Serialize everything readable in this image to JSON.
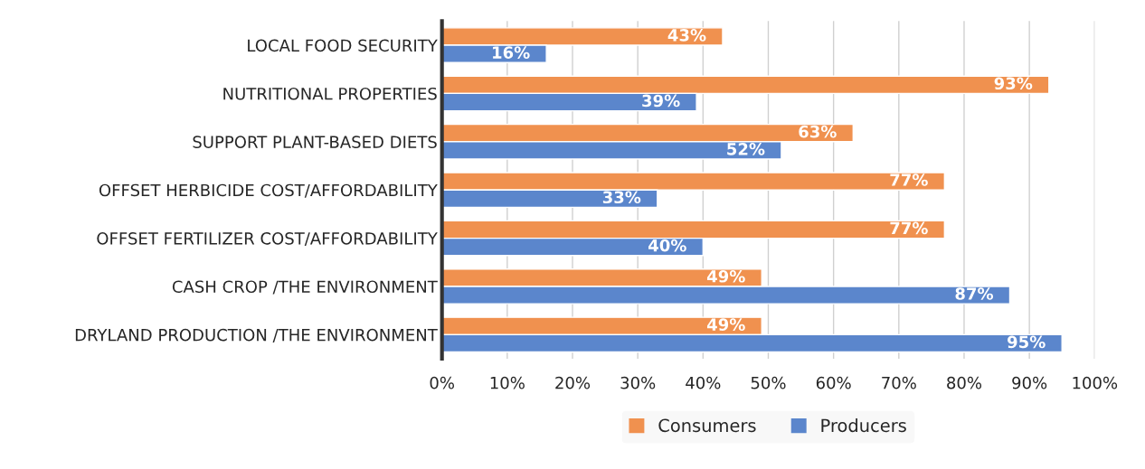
{
  "chart_data": {
    "type": "bar",
    "orientation": "horizontal",
    "categories": [
      "LOCAL FOOD SECURITY",
      "NUTRITIONAL PROPERTIES",
      "SUPPORT PLANT-BASED DIETS",
      "OFFSET HERBICIDE COST/AFFORDABILITY",
      "OFFSET FERTILIZER COST/AFFORDABILITY",
      "CASH CROP /THE ENVIRONMENT",
      "DRYLAND PRODUCTION /THE ENVIRONMENT"
    ],
    "series": [
      {
        "name": "Consumers",
        "color": "#f0914f",
        "values": [
          43,
          93,
          63,
          77,
          77,
          49,
          49
        ],
        "value_labels": [
          "43%",
          "93%",
          "63%",
          "77%",
          "77%",
          "49%",
          "49%"
        ]
      },
      {
        "name": "Producers",
        "color": "#5b86cc",
        "values": [
          16,
          39,
          52,
          33,
          40,
          87,
          95
        ],
        "value_labels": [
          "16%",
          "39%",
          "52%",
          "33%",
          "40%",
          "87%",
          "95%"
        ]
      }
    ],
    "xlim": [
      0,
      100
    ],
    "xticks": [
      {
        "value": 0,
        "label": "0%"
      },
      {
        "value": 10,
        "label": "10%"
      },
      {
        "value": 20,
        "label": "20%"
      },
      {
        "value": 30,
        "label": "30%"
      },
      {
        "value": 40,
        "label": "40%"
      },
      {
        "value": 50,
        "label": "50%"
      },
      {
        "value": 60,
        "label": "60%"
      },
      {
        "value": 70,
        "label": "70%"
      },
      {
        "value": 80,
        "label": "80%"
      },
      {
        "value": 90,
        "label": "90%"
      },
      {
        "value": 100,
        "label": "100%"
      }
    ],
    "grid": "x",
    "legend": "bottom"
  }
}
